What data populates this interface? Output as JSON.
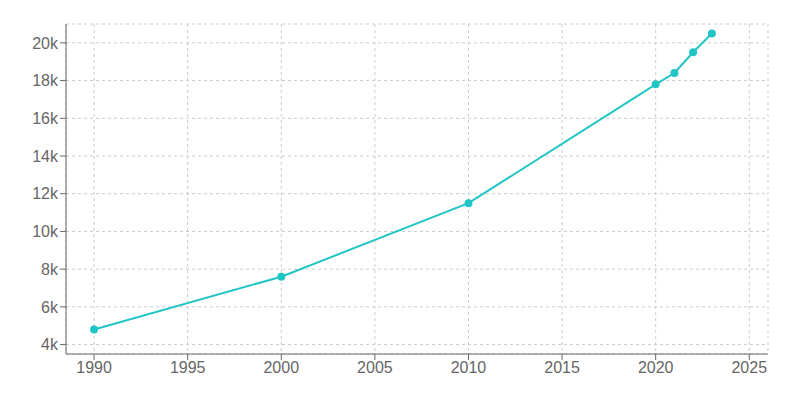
{
  "chart_data": {
    "type": "line",
    "x": [
      1990,
      2000,
      2010,
      2020,
      2021,
      2022,
      2023
    ],
    "series": [
      {
        "values": [
          4800,
          7600,
          11500,
          17800,
          18400,
          19500,
          20500
        ],
        "color": "#22c5c5",
        "marker": "circle"
      }
    ],
    "xlim": [
      1988.5,
      2026
    ],
    "ylim": [
      3500,
      21000
    ],
    "xticks": [
      1990,
      1995,
      2000,
      2005,
      2010,
      2015,
      2020,
      2025
    ],
    "yticks": [
      {
        "value": 4000,
        "label": "4k"
      },
      {
        "value": 6000,
        "label": "6k"
      },
      {
        "value": 8000,
        "label": "8k"
      },
      {
        "value": 10000,
        "label": "10k"
      },
      {
        "value": 12000,
        "label": "12k"
      },
      {
        "value": 14000,
        "label": "14k"
      },
      {
        "value": 16000,
        "label": "16k"
      },
      {
        "value": 18000,
        "label": "18k"
      },
      {
        "value": 20000,
        "label": "20k"
      }
    ],
    "grid": true
  }
}
